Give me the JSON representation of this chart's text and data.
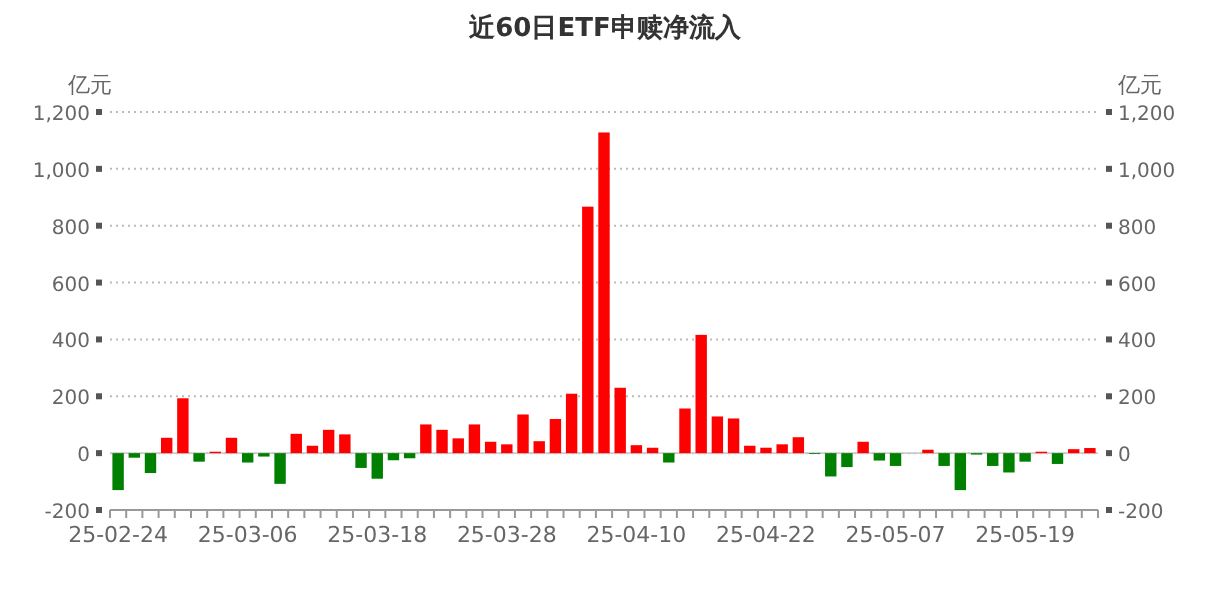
{
  "chart_data": {
    "type": "bar",
    "title": "近60日ETF申赎净流入",
    "ylabel": "亿元",
    "y2label": "亿元",
    "categories": [
      "25-02-24",
      null,
      null,
      null,
      null,
      null,
      null,
      null,
      "25-03-06",
      null,
      null,
      null,
      null,
      null,
      null,
      null,
      "25-03-18",
      null,
      null,
      null,
      null,
      null,
      null,
      null,
      "25-03-28",
      null,
      null,
      null,
      null,
      null,
      null,
      null,
      "25-04-10",
      null,
      null,
      null,
      null,
      null,
      null,
      null,
      "25-04-22",
      null,
      null,
      null,
      null,
      null,
      null,
      null,
      "25-05-07",
      null,
      null,
      null,
      null,
      null,
      null,
      null,
      "25-05-19",
      null,
      null,
      null,
      null
    ],
    "values": [
      -130,
      -16,
      -70,
      54,
      193,
      -30,
      5,
      54,
      -33,
      -12,
      -108,
      68,
      26,
      82,
      66,
      -52,
      -90,
      -25,
      -18,
      101,
      82,
      52,
      101,
      40,
      31,
      136,
      42,
      120,
      209,
      867,
      1128,
      230,
      28,
      19,
      -33,
      157,
      416,
      129,
      122,
      26,
      19,
      31,
      56,
      -3,
      -82,
      -49,
      40,
      -26,
      -45,
      0,
      12,
      -45,
      -130,
      -5,
      -45,
      -68,
      -30,
      5,
      -38,
      14,
      18
    ],
    "colors": [
      "#008000",
      "#008000",
      "#008000",
      "#ff0000",
      "#ff0000",
      "#008000",
      "#ff0000",
      "#ff0000",
      "#008000",
      "#008000",
      "#008000",
      "#ff0000",
      "#ff0000",
      "#ff0000",
      "#ff0000",
      "#008000",
      "#008000",
      "#008000",
      "#008000",
      "#ff0000",
      "#ff0000",
      "#ff0000",
      "#ff0000",
      "#ff0000",
      "#ff0000",
      "#ff0000",
      "#ff0000",
      "#ff0000",
      "#ff0000",
      "#ff0000",
      "#ff0000",
      "#ff0000",
      "#ff0000",
      "#ff0000",
      "#008000",
      "#ff0000",
      "#ff0000",
      "#ff0000",
      "#ff0000",
      "#ff0000",
      "#ff0000",
      "#ff0000",
      "#ff0000",
      "#008000",
      "#008000",
      "#008000",
      "#ff0000",
      "#008000",
      "#008000",
      "#ff0000",
      "#ff0000",
      "#008000",
      "#008000",
      "#008000",
      "#008000",
      "#008000",
      "#008000",
      "#ff0000",
      "#008000",
      "#ff0000",
      "#ff0000"
    ],
    "ylim": [
      -200,
      1200
    ],
    "yticks": [
      {
        "value": -200,
        "label": "-200"
      },
      {
        "value": 0,
        "label": "0"
      },
      {
        "value": 200,
        "label": "200"
      },
      {
        "value": 400,
        "label": "400"
      },
      {
        "value": 600,
        "label": "600"
      },
      {
        "value": 800,
        "label": "800"
      },
      {
        "value": 1000,
        "label": "1,000"
      },
      {
        "value": 1200,
        "label": "1,200"
      }
    ],
    "y2lim": [
      -200,
      1200
    ],
    "y2ticks": [
      {
        "value": -200,
        "label": "-200"
      },
      {
        "value": 0,
        "label": "0"
      },
      {
        "value": 200,
        "label": "200"
      },
      {
        "value": 400,
        "label": "400"
      },
      {
        "value": 600,
        "label": "600"
      },
      {
        "value": 800,
        "label": "800"
      },
      {
        "value": 1000,
        "label": "1,000"
      },
      {
        "value": 1200,
        "label": "1,200"
      }
    ],
    "grid": "y"
  }
}
